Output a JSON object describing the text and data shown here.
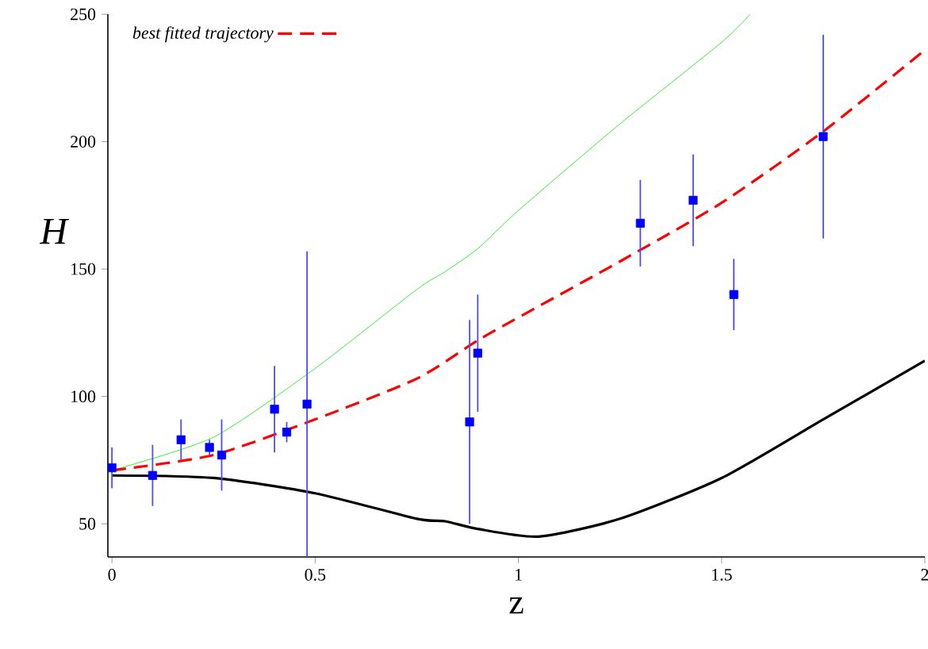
{
  "chart_data": {
    "type": "line",
    "xlabel": "z",
    "ylabel": "H",
    "xlim": [
      -0.01,
      2
    ],
    "ylim": [
      37,
      250
    ],
    "xticks": [
      0,
      0.5,
      1,
      1.5,
      2
    ],
    "yticks": [
      50,
      100,
      150,
      200,
      250
    ],
    "grid": false,
    "legend": "top left",
    "series": [
      {
        "color": "#00ee00",
        "marker": "none",
        "line_style": "solid",
        "x": [
          0,
          0.25,
          0.5,
          0.75,
          0.82,
          0.9,
          1,
          1.25,
          1.5,
          1.57
        ],
        "values": [
          71,
          84,
          111,
          142,
          149,
          158,
          173,
          207,
          239,
          250
        ]
      },
      {
        "name": "best fitted trajectory",
        "color": "#ff0000",
        "marker": "none",
        "line_style": "dashed",
        "x": [
          0,
          0.25,
          0.5,
          0.75,
          0.9,
          1,
          1.25,
          1.5,
          1.75,
          2
        ],
        "values": [
          71,
          77,
          91,
          107,
          122,
          131,
          153,
          176,
          204,
          236
        ]
      },
      {
        "color": "#000000",
        "marker": "none",
        "line_style": "solid",
        "x": [
          0,
          0.25,
          0.5,
          0.75,
          0.82,
          0.9,
          1.05,
          1.25,
          1.5,
          1.75,
          2
        ],
        "values": [
          69,
          68,
          62,
          52,
          51,
          48,
          45,
          52,
          68,
          91,
          114
        ]
      },
      {
        "type": "scatter",
        "color": "#0000ff",
        "marker": "square",
        "x": [
          0,
          0.1,
          0.17,
          0.24,
          0.27,
          0.4,
          0.43,
          0.48,
          0.88,
          0.9,
          1.3,
          1.43,
          1.53,
          1.75
        ],
        "values": [
          72,
          69,
          83,
          80,
          77,
          95,
          86,
          97,
          90,
          117,
          168,
          177,
          140,
          202
        ],
        "errors": [
          8,
          12,
          8,
          3,
          14,
          17,
          4,
          60,
          40,
          23,
          17,
          18,
          14,
          40
        ]
      }
    ]
  }
}
